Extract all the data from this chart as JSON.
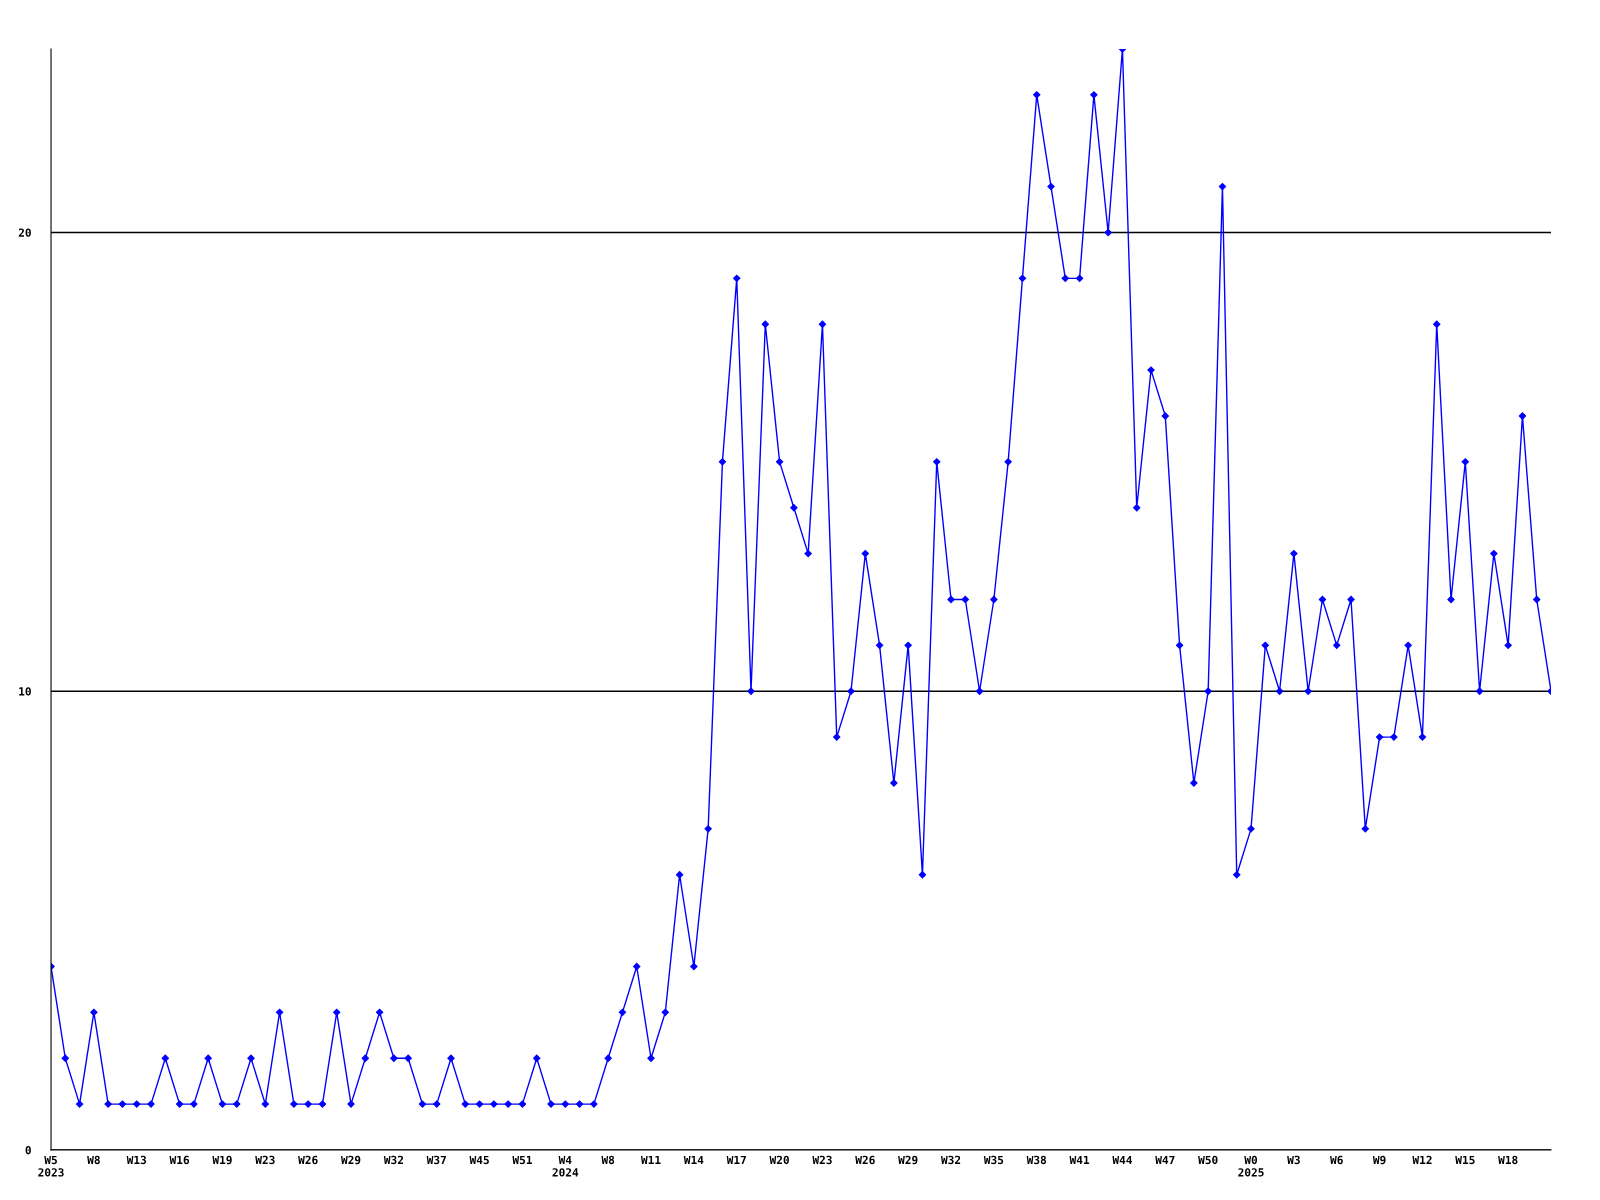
{
  "chart_data": {
    "type": "line",
    "categories": [
      "W5\n2023",
      null,
      null,
      "W8",
      null,
      null,
      "W13",
      null,
      null,
      "W16",
      null,
      null,
      "W19",
      null,
      null,
      "W23",
      null,
      null,
      "W26",
      null,
      null,
      "W29",
      null,
      null,
      "W32",
      null,
      null,
      "W37",
      null,
      null,
      "W45",
      null,
      null,
      "W51",
      null,
      null,
      "W4\n2024",
      null,
      null,
      "W8",
      null,
      null,
      "W11",
      null,
      null,
      "W14",
      null,
      null,
      "W17",
      null,
      null,
      "W20",
      null,
      null,
      "W23",
      null,
      null,
      "W26",
      null,
      null,
      "W29",
      null,
      null,
      "W32",
      null,
      null,
      "W35",
      null,
      null,
      "W38",
      null,
      null,
      "W41",
      null,
      null,
      "W44",
      null,
      null,
      "W47",
      null,
      null,
      "W50",
      null,
      null,
      "W0\n2025",
      null,
      null,
      "W3",
      null,
      null,
      "W6",
      null,
      null,
      "W9",
      null,
      null,
      "W12",
      null,
      null,
      "W15",
      null,
      null,
      "W18",
      null,
      null,
      null
    ],
    "series": [
      {
        "color": "#0000ff",
        "values": [
          4,
          2,
          1,
          3,
          1,
          1,
          1,
          1,
          2,
          1,
          1,
          2,
          1,
          1,
          2,
          1,
          3,
          1,
          1,
          1,
          3,
          1,
          2,
          3,
          2,
          2,
          1,
          1,
          2,
          1,
          1,
          1,
          1,
          1,
          2,
          1,
          1,
          1,
          1,
          2,
          3,
          4,
          2,
          3,
          6,
          4,
          7,
          15,
          19,
          10,
          18,
          15,
          14,
          13,
          18,
          9,
          10,
          13,
          11,
          8,
          11,
          6,
          15,
          12,
          12,
          10,
          12,
          15,
          19,
          23,
          21,
          19,
          19,
          23,
          20,
          24,
          14,
          17,
          16,
          11,
          8,
          10,
          21,
          6,
          7,
          11,
          10,
          13,
          10,
          12,
          11,
          12,
          7,
          9,
          9,
          11,
          9,
          18,
          12,
          15,
          10,
          13,
          11,
          16,
          12,
          10
        ]
      }
    ],
    "ylim": [
      0,
      24
    ],
    "yticks": [
      0,
      10,
      20
    ],
    "grid": "y",
    "marker": "diamond",
    "line_style": "solid",
    "legend": false
  }
}
